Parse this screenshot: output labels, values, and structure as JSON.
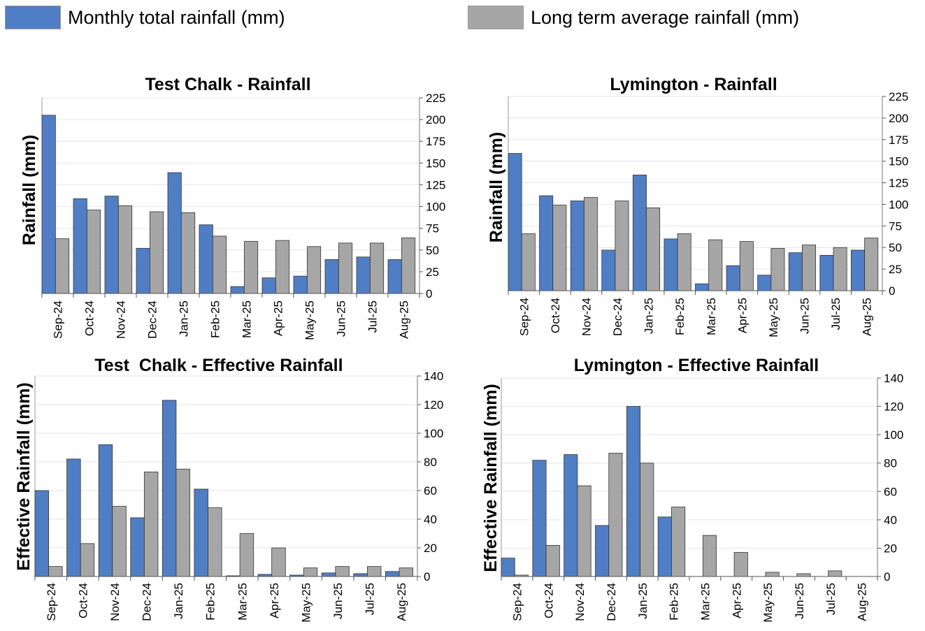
{
  "legend": [
    {
      "label": "Monthly total rainfall (mm)",
      "color": "#4f7ec5"
    },
    {
      "label": "Long term average rainfall (mm)",
      "color": "#a6a6a6"
    }
  ],
  "chart_data": [
    {
      "type": "bar",
      "title": "Test Chalk - Rainfall",
      "ylabel": "Rainfall (mm)",
      "xlabel": "",
      "categories": [
        "Sep-24",
        "Oct-24",
        "Nov-24",
        "Dec-24",
        "Jan-25",
        "Feb-25",
        "Mar-25",
        "Apr-25",
        "May-25",
        "Jun-25",
        "Jul-25",
        "Aug-25"
      ],
      "series": [
        {
          "name": "Monthly total rainfall (mm)",
          "color": "#4f7ec5",
          "values": [
            205,
            109,
            112,
            52,
            139,
            79,
            8,
            18,
            20,
            39,
            42,
            39
          ]
        },
        {
          "name": "Long term average rainfall (mm)",
          "color": "#a6a6a6",
          "values": [
            63,
            96,
            101,
            94,
            93,
            66,
            60,
            61,
            54,
            58,
            58,
            64
          ]
        }
      ],
      "ylim": [
        0,
        225
      ],
      "yticks": [
        0,
        25,
        50,
        75,
        100,
        125,
        150,
        175,
        200,
        225
      ],
      "yaxis_side": "right",
      "grid": true
    },
    {
      "type": "bar",
      "title": "Lymington - Rainfall",
      "ylabel": "Rainfall (mm)",
      "xlabel": "",
      "categories": [
        "Sep-24",
        "Oct-24",
        "Nov-24",
        "Dec-24",
        "Jan-25",
        "Feb-25",
        "Mar-25",
        "Apr-25",
        "May-25",
        "Jun-25",
        "Jul-25",
        "Aug-25"
      ],
      "series": [
        {
          "name": "Monthly total rainfall (mm)",
          "color": "#4f7ec5",
          "values": [
            159,
            110,
            104,
            47,
            134,
            60,
            8,
            29,
            18,
            44,
            41,
            47
          ]
        },
        {
          "name": "Long term average rainfall (mm)",
          "color": "#a6a6a6",
          "values": [
            66,
            99,
            108,
            104,
            96,
            66,
            59,
            57,
            49,
            53,
            50,
            61
          ]
        }
      ],
      "ylim": [
        0,
        225
      ],
      "yticks": [
        0,
        25,
        50,
        75,
        100,
        125,
        150,
        175,
        200,
        225
      ],
      "yaxis_side": "right",
      "grid": true
    },
    {
      "type": "bar",
      "title": "Test  Chalk - Effective Rainfall",
      "ylabel": "Effective Rainfall (mm)",
      "xlabel": "",
      "categories": [
        "Sep-24",
        "Oct-24",
        "Nov-24",
        "Dec-24",
        "Jan-25",
        "Feb-25",
        "Mar-25",
        "Apr-25",
        "May-25",
        "Jun-25",
        "Jul-25",
        "Aug-25"
      ],
      "series": [
        {
          "name": "Monthly total rainfall (mm)",
          "color": "#4f7ec5",
          "values": [
            60,
            82,
            92,
            41,
            123,
            61,
            0.5,
            1.5,
            1,
            2.5,
            2,
            3.5
          ]
        },
        {
          "name": "Long term average rainfall (mm)",
          "color": "#a6a6a6",
          "values": [
            7,
            23,
            49,
            73,
            75,
            48,
            30,
            20,
            6,
            7,
            7,
            6
          ]
        }
      ],
      "ylim": [
        0,
        140
      ],
      "yticks": [
        0,
        20,
        40,
        60,
        80,
        100,
        120,
        140
      ],
      "yaxis_side": "right",
      "grid": true
    },
    {
      "type": "bar",
      "title": "Lymington - Effective Rainfall",
      "ylabel": "Effective Rainfall (mm)",
      "xlabel": "",
      "categories": [
        "Sep-24",
        "Oct-24",
        "Nov-24",
        "Dec-24",
        "Jan-25",
        "Feb-25",
        "Mar-25",
        "Apr-25",
        "May-25",
        "Jun-25",
        "Jul-25",
        "Aug-25"
      ],
      "series": [
        {
          "name": "Monthly total rainfall (mm)",
          "color": "#4f7ec5",
          "values": [
            13,
            82,
            86,
            36,
            120,
            42,
            0,
            0,
            0,
            0,
            0,
            0
          ]
        },
        {
          "name": "Long term average rainfall (mm)",
          "color": "#a6a6a6",
          "values": [
            1,
            22,
            64,
            87,
            80,
            49,
            29,
            17,
            3,
            2,
            4,
            0
          ]
        }
      ],
      "ylim": [
        0,
        140
      ],
      "yticks": [
        0,
        20,
        40,
        60,
        80,
        100,
        120,
        140
      ],
      "yaxis_side": "right",
      "grid": true
    }
  ]
}
